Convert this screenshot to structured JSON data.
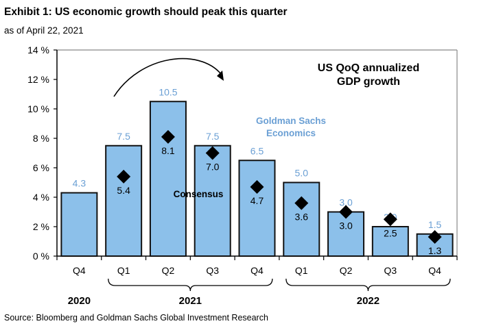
{
  "title": "Exhibit 1: US economic growth should peak this quarter",
  "subtitle": "as of April 22, 2021",
  "source": "Source: Bloomberg and Goldman Sachs Global Investment Research",
  "colors": {
    "bar": "#8cc0ea",
    "gs_label": "#6a9fd4",
    "consensus": "#000000"
  },
  "chart_data": {
    "type": "bar",
    "categories": [
      "Q4",
      "Q1",
      "Q2",
      "Q3",
      "Q4",
      "Q1",
      "Q2",
      "Q3",
      "Q4"
    ],
    "years": [
      {
        "label": "2020",
        "from": 0,
        "to": 0
      },
      {
        "label": "2021",
        "from": 1,
        "to": 4
      },
      {
        "label": "2022",
        "from": 5,
        "to": 8
      }
    ],
    "series": [
      {
        "name": "Goldman Sachs Economics",
        "values": [
          4.3,
          7.5,
          10.5,
          7.5,
          6.5,
          5.0,
          3.0,
          2.0,
          1.5
        ],
        "labels": [
          "4.3",
          "7.5",
          "10.5",
          "7.5",
          "6.5",
          "5.0",
          "3.0",
          "2.0",
          "1.5"
        ]
      },
      {
        "name": "Consensus",
        "values": [
          null,
          5.4,
          8.1,
          7.0,
          4.7,
          3.6,
          3.0,
          2.5,
          1.3
        ],
        "labels": [
          "",
          "5.4",
          "8.1",
          "7.0",
          "4.7",
          "3.6",
          "3.0",
          "2.5",
          "1.3"
        ]
      }
    ],
    "ylim": [
      0,
      14
    ],
    "yticks": [
      0,
      2,
      4,
      6,
      8,
      10,
      12,
      14
    ],
    "ytick_labels": [
      "0 %",
      "2 %",
      "4 %",
      "6 %",
      "8 %",
      "10 %",
      "12 %",
      "14 %"
    ],
    "annotations": {
      "chart_label_line1": "US QoQ annualized",
      "chart_label_line2": "GDP growth",
      "gs_line1": "Goldman Sachs",
      "gs_line2": "Economics",
      "consensus": "Consensus"
    },
    "grid": false
  }
}
